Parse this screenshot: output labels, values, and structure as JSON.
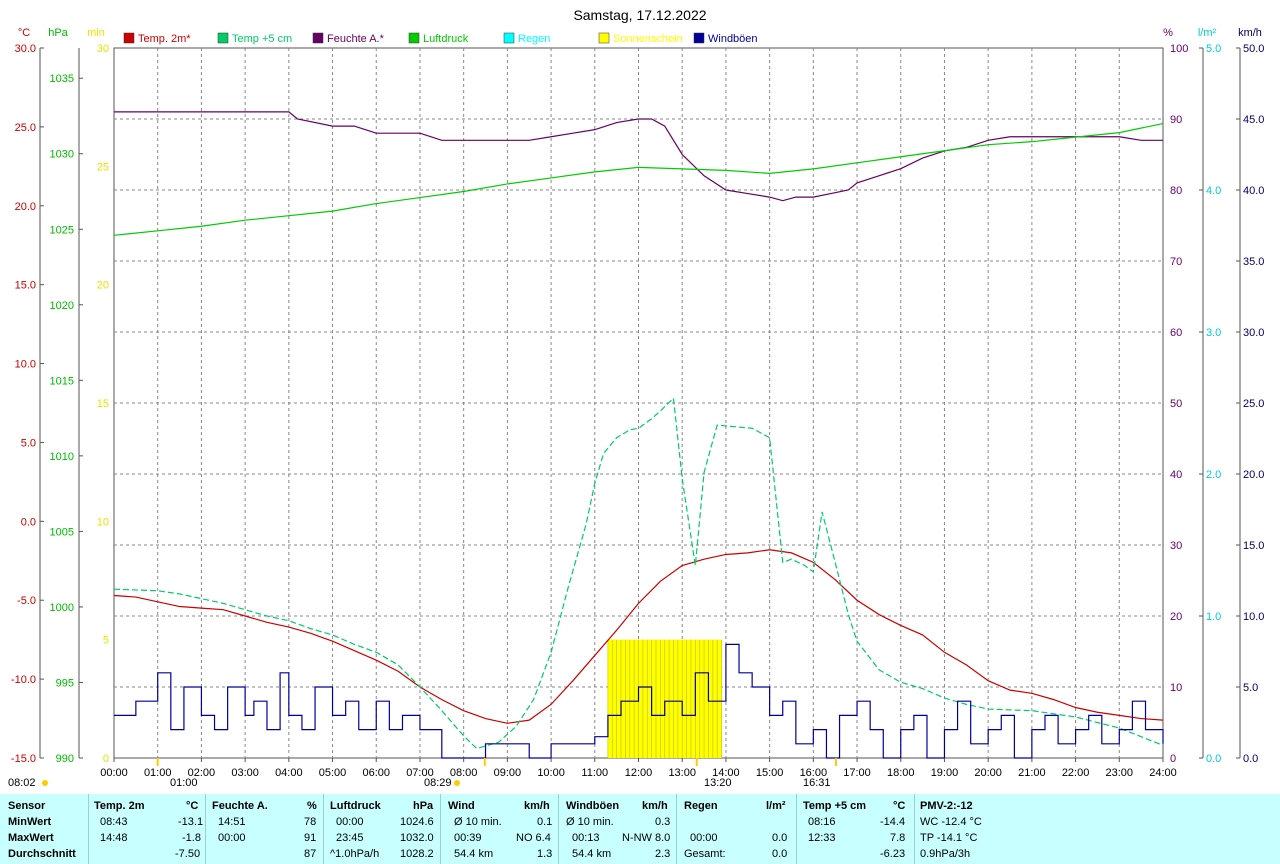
{
  "chart_data": {
    "type": "line",
    "title": "Samstag, 17.12.2022",
    "x_ticks": [
      "00:00",
      "01:00",
      "02:00",
      "03:00",
      "04:00",
      "05:00",
      "06:00",
      "07:00",
      "08:00",
      "09:00",
      "10:00",
      "11:00",
      "12:00",
      "13:00",
      "14:00",
      "15:00",
      "16:00",
      "17:00",
      "18:00",
      "19:00",
      "20:00",
      "21:00",
      "22:00",
      "23:00",
      "24:00"
    ],
    "axes": {
      "temp": {
        "unit": "°C",
        "color": "#cc0000",
        "range": [
          -15,
          30
        ],
        "ticks": [
          "30.0",
          "25.0",
          "20.0",
          "15.0",
          "10.0",
          "5.0",
          "0.0",
          "-5.0",
          "-10.0",
          "-15.0"
        ]
      },
      "pressure": {
        "unit": "hPa",
        "color": "#00bb00",
        "range": [
          990,
          1037
        ],
        "ticks": [
          "1035",
          "1030",
          "1025",
          "1020",
          "1015",
          "1010",
          "1005",
          "1000",
          "995",
          "990"
        ]
      },
      "sunshine": {
        "unit": "min",
        "color": "#e6e600",
        "range": [
          0,
          30
        ],
        "ticks": [
          "30",
          "25",
          "20",
          "15",
          "10",
          "5",
          "0"
        ]
      },
      "humidity": {
        "unit": "%",
        "color": "#660066",
        "range": [
          0,
          100
        ],
        "ticks": [
          "100",
          "90",
          "80",
          "70",
          "60",
          "50",
          "40",
          "30",
          "20",
          "10",
          "0"
        ]
      },
      "rain": {
        "unit": "l/m²",
        "color": "#00cccc",
        "range": [
          0,
          5
        ],
        "ticks": [
          "5.0",
          "4.0",
          "3.0",
          "2.0",
          "1.0",
          "0.0"
        ]
      },
      "wind": {
        "unit": "km/h",
        "color": "#000066",
        "range": [
          0,
          50
        ],
        "ticks": [
          "50.0",
          "45.0",
          "40.0",
          "35.0",
          "30.0",
          "25.0",
          "20.0",
          "15.0",
          "10.0",
          "5.0",
          "0.0"
        ]
      }
    },
    "legend": [
      {
        "label": "Temp. 2m*",
        "color": "#cc0000"
      },
      {
        "label": "Temp +5 cm",
        "color": "#00cc66"
      },
      {
        "label": "Feuchte A.*",
        "color": "#660066"
      },
      {
        "label": "Luftdruck",
        "color": "#00cc00"
      },
      {
        "label": "Regen",
        "color": "#00ffff"
      },
      {
        "label": "Sonnenschein",
        "color": "#ffff00"
      },
      {
        "label": "Windböen",
        "color": "#000099"
      }
    ],
    "series": [
      {
        "name": "Temp. 2m*",
        "axis": "temp",
        "x": [
          0,
          0.5,
          1,
          1.5,
          2,
          2.5,
          3,
          3.5,
          4,
          4.5,
          5,
          5.5,
          6,
          6.5,
          7,
          7.5,
          8,
          8.5,
          9,
          9.5,
          10,
          10.5,
          11,
          11.5,
          12,
          12.5,
          13,
          13.5,
          14,
          14.5,
          15,
          15.5,
          16,
          16.5,
          17,
          17.5,
          18,
          18.5,
          19,
          19.5,
          20,
          20.5,
          21,
          21.5,
          22,
          22.5,
          23,
          23.5,
          24
        ],
        "y": [
          -4.7,
          -4.8,
          -5.1,
          -5.4,
          -5.5,
          -5.6,
          -6.0,
          -6.4,
          -6.7,
          -7.1,
          -7.6,
          -8.2,
          -8.8,
          -9.5,
          -10.5,
          -11.3,
          -12.0,
          -12.5,
          -12.8,
          -12.6,
          -11.6,
          -10.1,
          -8.5,
          -6.9,
          -5.2,
          -3.8,
          -2.8,
          -2.4,
          -2.1,
          -2.0,
          -1.8,
          -2.0,
          -2.6,
          -3.7,
          -5.0,
          -5.9,
          -6.6,
          -7.2,
          -8.3,
          -9.1,
          -10.1,
          -10.7,
          -10.9,
          -11.3,
          -11.8,
          -12.1,
          -12.3,
          -12.5,
          -12.6
        ]
      },
      {
        "name": "Temp +5 cm",
        "axis": "temp",
        "x": [
          0,
          1,
          1.5,
          2,
          2.5,
          3,
          3.5,
          4,
          4.5,
          5,
          5.5,
          6,
          6.5,
          7,
          7.5,
          8,
          8.3,
          8.8,
          9.2,
          9.6,
          10,
          10.4,
          10.8,
          11,
          11.2,
          11.5,
          11.8,
          12,
          12.3,
          12.5,
          12.8,
          13,
          13.3,
          13.5,
          13.8,
          14.2,
          14.6,
          15,
          15.3,
          15.5,
          15.8,
          16,
          16.2,
          16.5,
          16.8,
          17,
          17.5,
          18,
          18.5,
          19,
          19.5,
          20,
          21,
          22,
          23,
          24
        ],
        "y": [
          -4.3,
          -4.4,
          -4.6,
          -4.9,
          -5.2,
          -5.6,
          -6.0,
          -6.3,
          -6.8,
          -7.2,
          -7.8,
          -8.3,
          -9.1,
          -10.5,
          -12.0,
          -13.6,
          -14.4,
          -14.0,
          -13.0,
          -11.3,
          -8.3,
          -4.1,
          -0.2,
          2.4,
          4.3,
          5.3,
          5.8,
          5.9,
          6.5,
          7.0,
          7.8,
          2.7,
          -2.8,
          3.1,
          6.1,
          6.0,
          5.9,
          5.3,
          -2.6,
          -2.4,
          -2.8,
          -3.2,
          0.6,
          -2.6,
          -5.9,
          -7.6,
          -9.4,
          -10.2,
          -10.6,
          -11.2,
          -11.6,
          -11.9,
          -12.0,
          -12.4,
          -13.1,
          -14.2
        ]
      },
      {
        "name": "Feuchte A.*",
        "axis": "humidity",
        "x": [
          0,
          1,
          2,
          3,
          4,
          4.2,
          5,
          5.5,
          6,
          6.5,
          7,
          7.5,
          8,
          8.5,
          9,
          9.5,
          10,
          10.5,
          11,
          11.5,
          12,
          12.3,
          12.6,
          13,
          13.5,
          14,
          14.5,
          15,
          15.3,
          15.6,
          16,
          16.4,
          16.8,
          17,
          17.5,
          18,
          18.5,
          19,
          19.5,
          20,
          20.5,
          21,
          21.5,
          22,
          22.5,
          23,
          23.5,
          24
        ],
        "y": [
          91,
          91,
          91,
          91,
          91,
          90,
          89,
          89,
          88,
          88,
          88,
          87,
          87,
          87,
          87,
          87,
          87.5,
          88,
          88.5,
          89.5,
          90,
          90,
          89,
          85,
          82,
          80,
          79.5,
          79,
          78.5,
          79,
          79,
          79.5,
          80,
          81,
          82,
          83,
          84.5,
          85.5,
          86,
          87,
          87.5,
          87.5,
          87.5,
          87.5,
          87.5,
          87.5,
          87,
          87
        ]
      },
      {
        "name": "Luftdruck",
        "axis": "pressure",
        "x": [
          0,
          1,
          2,
          3,
          4,
          5,
          6,
          7,
          8,
          9,
          10,
          11,
          12,
          13,
          14,
          15,
          16,
          17,
          18,
          19,
          20,
          21,
          22,
          23,
          24
        ],
        "y": [
          1024.6,
          1024.9,
          1025.2,
          1025.6,
          1025.9,
          1026.2,
          1026.7,
          1027.1,
          1027.5,
          1028.0,
          1028.4,
          1028.8,
          1029.1,
          1029.0,
          1028.9,
          1028.7,
          1029.0,
          1029.4,
          1029.8,
          1030.2,
          1030.6,
          1030.8,
          1031.1,
          1031.4,
          1032.0
        ]
      },
      {
        "name": "Windböen",
        "axis": "wind",
        "x": [
          0,
          0.5,
          1,
          1.3,
          1.6,
          2,
          2.3,
          2.6,
          3,
          3.2,
          3.5,
          3.8,
          4,
          4.3,
          4.6,
          5,
          5.3,
          5.6,
          6,
          6.3,
          6.6,
          7,
          7.5,
          8,
          8.5,
          9,
          9.5,
          10,
          10.5,
          11,
          11.3,
          11.6,
          12,
          12.3,
          12.6,
          13,
          13.3,
          13.6,
          14,
          14.3,
          14.6,
          15,
          15.3,
          15.6,
          16,
          16.3,
          16.6,
          17,
          17.3,
          17.6,
          18,
          18.3,
          18.6,
          19,
          19.3,
          19.6,
          20,
          20.3,
          20.6,
          21,
          21.3,
          21.6,
          22,
          22.3,
          22.6,
          23,
          23.3,
          23.6,
          24
        ],
        "y": [
          3,
          4,
          6,
          2,
          5,
          3,
          2,
          5,
          3,
          4,
          2,
          6,
          3,
          2,
          5,
          3,
          4,
          2,
          4,
          2,
          3,
          2,
          0,
          0,
          1,
          1,
          0,
          1,
          1,
          1.5,
          3,
          4,
          5,
          3,
          4,
          3,
          6,
          4,
          8,
          6,
          5,
          3,
          4,
          1,
          2,
          0,
          3,
          4,
          2,
          0,
          2,
          3,
          0,
          2,
          4,
          1,
          2,
          3,
          0,
          2,
          3,
          1,
          2,
          3,
          1,
          2,
          4,
          2,
          1
        ]
      }
    ],
    "sunshine_bars": {
      "x_start": 11.3,
      "x_end": 13.9,
      "value_min": 5
    },
    "rain_total": 0,
    "markers": [
      {
        "label": "08:02",
        "x": 0
      },
      {
        "label": "01:00",
        "x": 1
      },
      {
        "label": "08:29",
        "x": 8.483
      },
      {
        "label": "13:20",
        "x": 13.333
      },
      {
        "label": "16:31",
        "x": 16.517
      }
    ]
  },
  "footer": {
    "rows": [
      "Sensor",
      "MinWert",
      "MaxWert",
      "Durchschnitt"
    ],
    "temp2m": {
      "hdr": "Temp. 2m",
      "unit": "°C",
      "min_time": "08:43",
      "min": "-13.1",
      "max_time": "14:48",
      "max": "-1.8",
      "avg": "-7.50"
    },
    "humidity": {
      "hdr": "Feuchte A.",
      "unit": "%",
      "min_time": "14:51",
      "min": "78",
      "max_time": "00:00",
      "max": "91",
      "avg": "87"
    },
    "pressure": {
      "hdr": "Luftdruck",
      "unit": "hPa",
      "min_time": "00:00",
      "min": "1024.6",
      "max_time": "23:45",
      "max": "1032.0",
      "avg_label": "^1.0hPa/h",
      "avg": "1028.2"
    },
    "wind": {
      "hdr": "Wind",
      "unit": "km/h",
      "r1_label": "Ø 10 min.",
      "r1": "0.1",
      "r2_time": "00:39",
      "r2_dir": "NO 6.4",
      "r3_label": "54.4 km",
      "r3": "1.3"
    },
    "gusts": {
      "hdr": "Windböen",
      "unit": "km/h",
      "r1_label": "Ø 10 min.",
      "r1": "0.3",
      "r2_time": "00:13",
      "r2_dir": "N-NW 8.0",
      "r3_label": "54.4 km",
      "r3": "2.3"
    },
    "rain": {
      "hdr": "Regen",
      "unit": "l/m²",
      "r2_time": "00:00",
      "r2": "0.0",
      "r3_label": "Gesamt:",
      "r3": "0.0"
    },
    "temp5cm": {
      "hdr": "Temp +5 cm",
      "unit": "°C",
      "min_time": "08:16",
      "min": "-14.4",
      "max_time": "12:33",
      "max": "7.8",
      "avg": "-6.23"
    },
    "pmv": {
      "hdr": "PMV-2:-12",
      "r1": "WC -12.4 °C",
      "r2": "TP -14.1 °C",
      "r3": "0.9hPa/3h"
    }
  }
}
